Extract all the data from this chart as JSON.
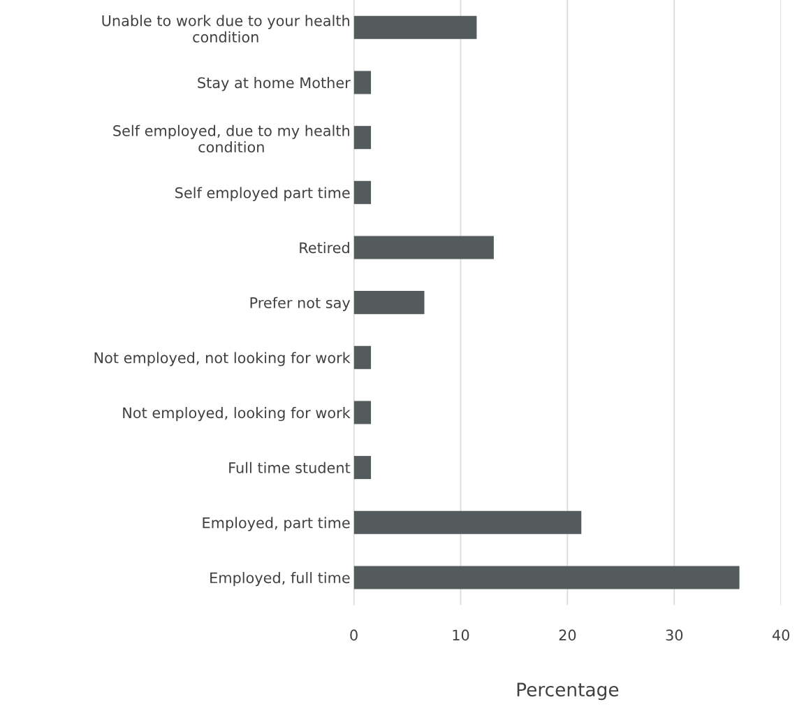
{
  "chart_data": {
    "type": "bar",
    "orientation": "horizontal",
    "xlabel": "Percentage",
    "categories": [
      "Unable to work due to your health condition",
      "Stay at home Mother",
      "Self employed, due to my health condition",
      "Self employed part time",
      "Retired",
      "Prefer not say",
      "Not employed, not looking for work",
      "Not employed, looking for work",
      "Full time student",
      "Employed, part time",
      "Employed, full time"
    ],
    "values": [
      11.5,
      1.6,
      1.6,
      1.6,
      13.1,
      6.6,
      1.6,
      1.6,
      1.6,
      21.3,
      36.1
    ],
    "color": "#535b5d",
    "xlim": [
      0,
      40
    ],
    "xticks": [
      0,
      10,
      20,
      30,
      40
    ],
    "grid": "x",
    "legend": false
  }
}
